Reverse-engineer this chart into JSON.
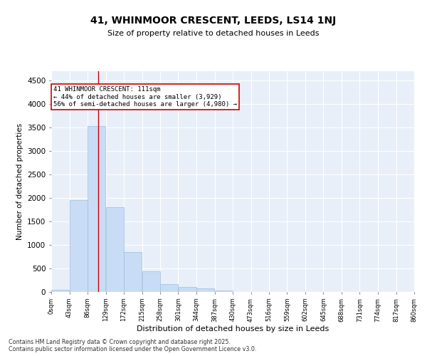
{
  "title1": "41, WHINMOOR CRESCENT, LEEDS, LS14 1NJ",
  "title2": "Size of property relative to detached houses in Leeds",
  "xlabel": "Distribution of detached houses by size in Leeds",
  "ylabel": "Number of detached properties",
  "bar_color": "#c8dcf5",
  "bar_edge_color": "#a0bedd",
  "bg_color": "#e8eff9",
  "grid_color": "#ffffff",
  "annotation_box_color": "#cc0000",
  "annotation_text": "41 WHINMOOR CRESCENT: 111sqm\n← 44% of detached houses are smaller (3,929)\n56% of semi-detached houses are larger (4,980) →",
  "property_size": 111,
  "bin_edges": [
    0,
    43,
    86,
    129,
    172,
    215,
    258,
    301,
    344,
    387,
    430,
    473,
    516,
    559,
    602,
    645,
    688,
    731,
    774,
    817,
    860
  ],
  "bar_values": [
    50,
    1950,
    3530,
    1800,
    850,
    440,
    170,
    100,
    70,
    30,
    5,
    2,
    1,
    1,
    0,
    0,
    0,
    0,
    0,
    0
  ],
  "tick_labels": [
    "0sqm",
    "43sqm",
    "86sqm",
    "129sqm",
    "172sqm",
    "215sqm",
    "258sqm",
    "301sqm",
    "344sqm",
    "387sqm",
    "430sqm",
    "473sqm",
    "516sqm",
    "559sqm",
    "602sqm",
    "645sqm",
    "688sqm",
    "731sqm",
    "774sqm",
    "817sqm",
    "860sqm"
  ],
  "ylim": [
    0,
    4700
  ],
  "yticks": [
    0,
    500,
    1000,
    1500,
    2000,
    2500,
    3000,
    3500,
    4000,
    4500
  ],
  "footnote": "Contains HM Land Registry data © Crown copyright and database right 2025.\nContains public sector information licensed under the Open Government Licence v3.0.",
  "red_line_x": 111
}
